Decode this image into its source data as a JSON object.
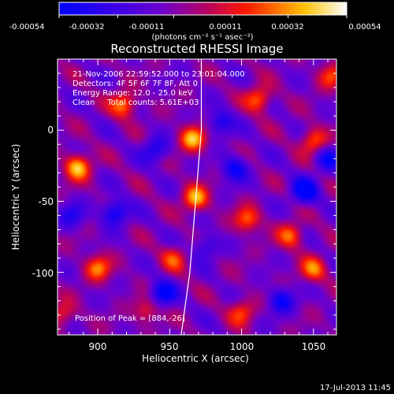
{
  "colorbar": {
    "tick_labels": [
      "-0.00054",
      "-0.00032",
      "-0.00011",
      "0.00011",
      "0.00032",
      "0.00054"
    ],
    "units_label": "(photons cm⁻² s⁻¹ asec⁻²)",
    "vmin": -0.00054,
    "vmax": 0.00054,
    "colormap": "rhessi-blue-purple-red-yellow-white"
  },
  "chart_data": {
    "type": "heatmap",
    "title": "Reconstructed RHESSI Image",
    "xlabel": "Heliocentric X (arcsec)",
    "ylabel": "Heliocentric Y (arcsec)",
    "xlim": [
      872,
      1066
    ],
    "ylim": [
      -144,
      50
    ],
    "x_ticks": [
      900,
      950,
      1000,
      1050
    ],
    "y_ticks": [
      0,
      -50,
      -100
    ],
    "annotations": [
      "21-Nov-2006 22:59:52.000 to 23:01:04.000",
      "Detectors: 4F 5F 6F 7F 8F, Att 0",
      "Energy Range: 12.0 - 25.0 keV",
      "Clean     Total counts: 5.61E+03"
    ],
    "peak_label": "Position of Peak = [884,-26]",
    "limb_curve": [
      [
        972,
        50
      ],
      [
        972,
        0
      ],
      [
        968,
        -50
      ],
      [
        964,
        -100
      ],
      [
        958,
        -144
      ]
    ],
    "features": [
      {
        "x": 886,
        "y": -26,
        "w": 1.0
      },
      {
        "x": 966,
        "y": -6,
        "w": 0.95
      },
      {
        "x": 968,
        "y": -48,
        "w": 0.9
      },
      {
        "x": 918,
        "y": 18,
        "w": 0.8
      },
      {
        "x": 1012,
        "y": 22,
        "w": 0.75
      },
      {
        "x": 1050,
        "y": -8,
        "w": 0.7
      },
      {
        "x": 1004,
        "y": -63,
        "w": 0.7
      },
      {
        "x": 900,
        "y": -97,
        "w": 0.75
      },
      {
        "x": 1034,
        "y": -74,
        "w": 0.7
      },
      {
        "x": 1050,
        "y": -98,
        "w": 0.7
      },
      {
        "x": 953,
        "y": -90,
        "w": 0.55
      },
      {
        "x": 1000,
        "y": -128,
        "w": 0.6
      },
      {
        "x": 934,
        "y": -127,
        "w": 0.55
      },
      {
        "x": 875,
        "y": -130,
        "w": 0.55
      },
      {
        "x": 1062,
        "y": 38,
        "w": 0.6
      },
      {
        "x": 1044,
        "y": -43,
        "w": -0.9
      },
      {
        "x": 912,
        "y": -58,
        "w": -0.8
      },
      {
        "x": 995,
        "y": -27,
        "w": -0.7
      },
      {
        "x": 945,
        "y": -115,
        "w": -0.8
      },
      {
        "x": 940,
        "y": -14,
        "w": -0.6
      },
      {
        "x": 1028,
        "y": -120,
        "w": -0.7
      },
      {
        "x": 985,
        "y": 5,
        "w": -0.6
      },
      {
        "x": 1060,
        "y": -20,
        "w": -0.6
      },
      {
        "x": 882,
        "y": -60,
        "w": -0.5
      },
      {
        "x": 975,
        "y": -82,
        "w": -0.5
      }
    ]
  },
  "footer": {
    "date_stamp": "17-Jul-2013 11:45"
  }
}
